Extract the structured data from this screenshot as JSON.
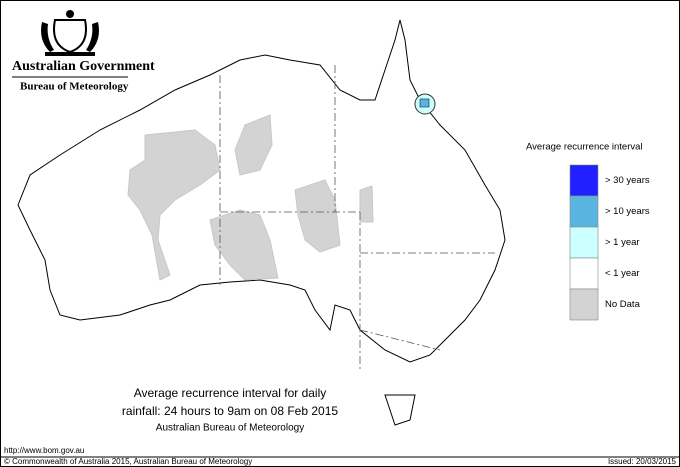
{
  "header": {
    "title": "Australian Government",
    "subtitle": "Bureau of Meteorology"
  },
  "legend": {
    "title": "Average recurrence interval",
    "items": [
      {
        "label": "> 30 years",
        "color": "#1f1fff"
      },
      {
        "label": "> 10 years",
        "color": "#5ab4e0"
      },
      {
        "label": "> 1 year",
        "color": "#ccffff"
      },
      {
        "label": "< 1 year",
        "color": "#ffffff"
      },
      {
        "label": "No Data",
        "color": "#d3d3d3"
      }
    ]
  },
  "caption": {
    "lines": [
      "Average recurrence interval for daily",
      "rainfall: 24 hours to 9am on 08 Feb 2015"
    ],
    "source": "Australian Bureau of Meteorology"
  },
  "footer": {
    "url": "http://www.bom.gov.au",
    "copyright": "© Commonwealth of Australia 2015, Australian Bureau of Meteorology",
    "issued": "Issued: 20/03/2015"
  }
}
